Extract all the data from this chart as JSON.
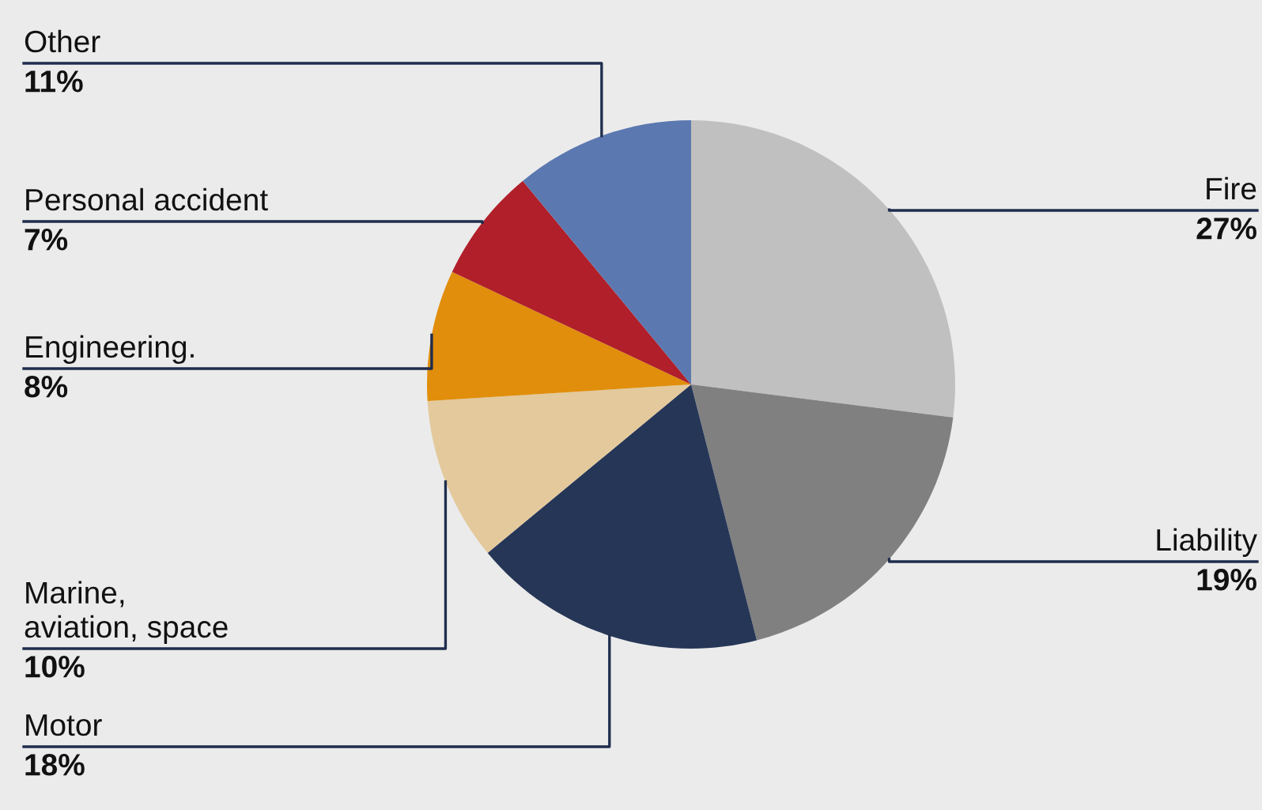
{
  "chart_data": {
    "type": "pie",
    "categories": [
      "Fire",
      "Liability",
      "Motor",
      "Marine,\naviation, space",
      "Engineering.",
      "Personal accident",
      "Other"
    ],
    "values": [
      27,
      19,
      18,
      10,
      8,
      7,
      11
    ],
    "value_labels": [
      "27%",
      "19%",
      "18%",
      "10%",
      "8%",
      "7%",
      "11%"
    ],
    "colors": [
      "#c0c0c0",
      "#808080",
      "#263657",
      "#e3c99c",
      "#e08e0b",
      "#b01f2a",
      "#5b78b0"
    ]
  }
}
